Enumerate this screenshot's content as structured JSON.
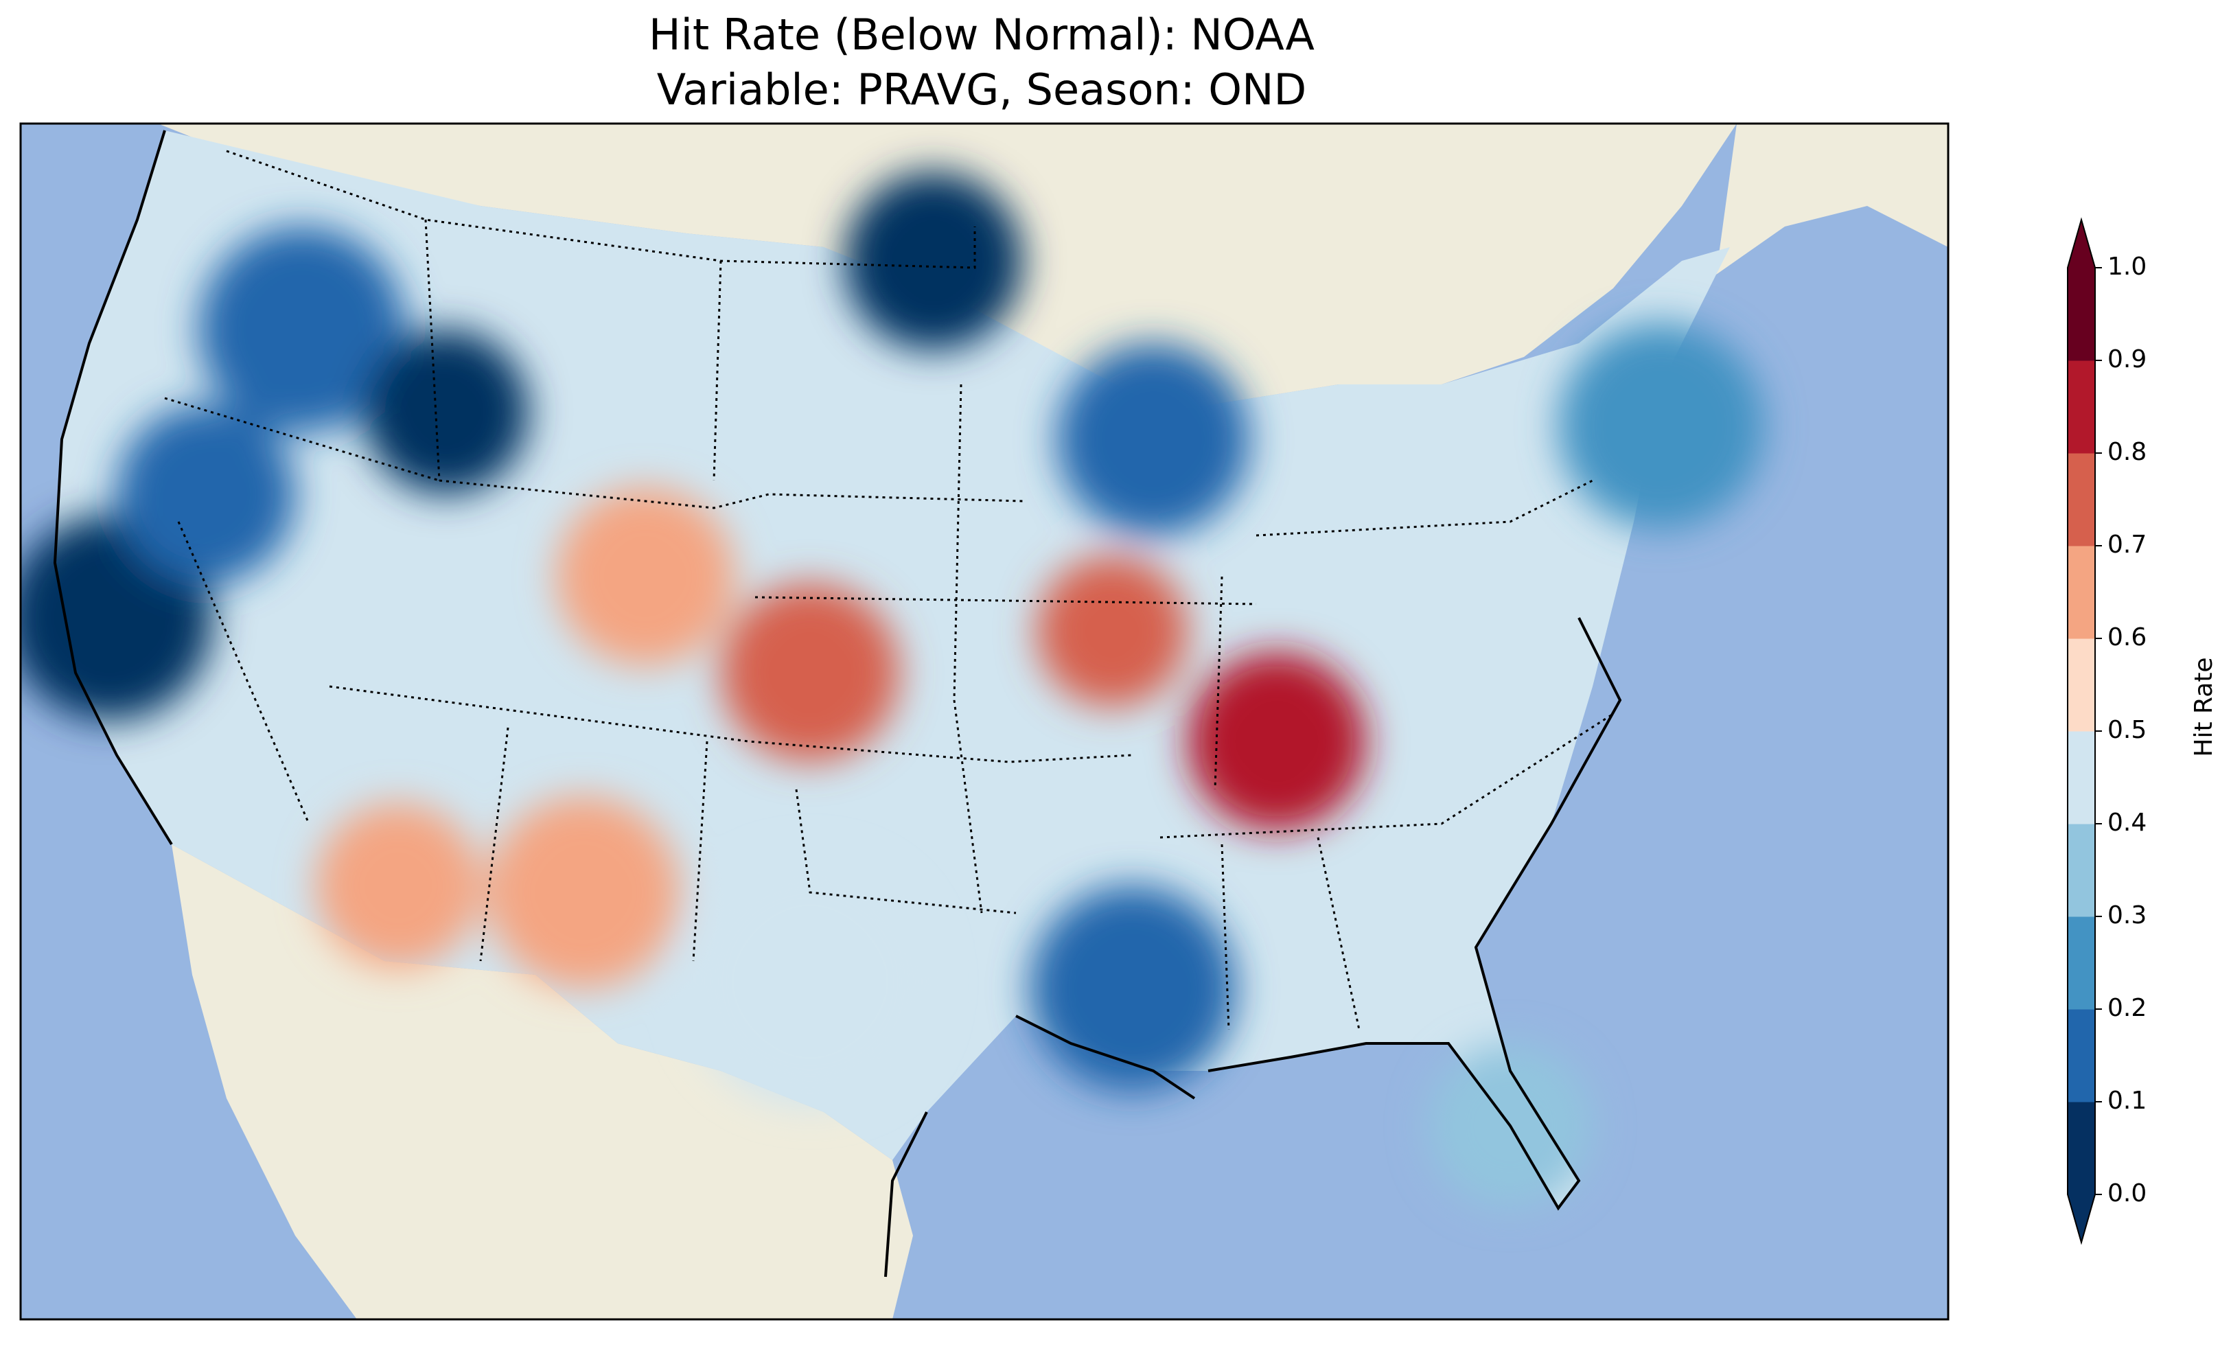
{
  "title": {
    "line1": "Hit Rate (Below Normal): NOAA",
    "line2": "Variable: PRAVG, Season: OND"
  },
  "colors": {
    "ocean": "#97b6e1",
    "land": "#efecdc",
    "border": "#000000"
  },
  "colorbar": {
    "label": "Hit Rate",
    "ticks": [
      "0.0",
      "0.1",
      "0.2",
      "0.3",
      "0.4",
      "0.5",
      "0.6",
      "0.7",
      "0.8",
      "0.9",
      "1.0"
    ],
    "colors": [
      "#053061",
      "#2166ac",
      "#4393c3",
      "#92c5de",
      "#d1e5f0",
      "#fddbc7",
      "#f4a582",
      "#d6604d",
      "#b2182b",
      "#67001f"
    ],
    "under_color": "#053061",
    "over_color": "#67001f",
    "range": [
      0.0,
      1.0
    ]
  },
  "chart_data": {
    "type": "heatmap",
    "title": "Hit Rate (Below Normal): NOAA\nVariable: PRAVG, Season: OND",
    "metric": "Hit Rate",
    "region": "Contiguous United States",
    "value_range": [
      0.0,
      1.0
    ],
    "bins": [
      {
        "range": [
          0.0,
          0.1
        ],
        "color": "#053061"
      },
      {
        "range": [
          0.1,
          0.2
        ],
        "color": "#2166ac"
      },
      {
        "range": [
          0.2,
          0.3
        ],
        "color": "#4393c3"
      },
      {
        "range": [
          0.3,
          0.4
        ],
        "color": "#92c5de"
      },
      {
        "range": [
          0.4,
          0.5
        ],
        "color": "#d1e5f0"
      },
      {
        "range": [
          0.5,
          0.6
        ],
        "color": "#fddbc7"
      },
      {
        "range": [
          0.6,
          0.7
        ],
        "color": "#f4a582"
      },
      {
        "range": [
          0.7,
          0.8
        ],
        "color": "#d6604d"
      },
      {
        "range": [
          0.8,
          0.9
        ],
        "color": "#b2182b"
      },
      {
        "range": [
          0.9,
          1.0
        ],
        "color": "#67001f"
      }
    ],
    "regional_values": [
      {
        "region": "California coast",
        "value": 0.05
      },
      {
        "region": "Northern Nevada",
        "value": 0.15
      },
      {
        "region": "Oregon / Idaho",
        "value": 0.15
      },
      {
        "region": "Western Montana",
        "value": 0.05
      },
      {
        "region": "Northern Minnesota",
        "value": 0.05
      },
      {
        "region": "Wisconsin / Michigan",
        "value": 0.15
      },
      {
        "region": "Louisiana / Mississippi",
        "value": 0.1
      },
      {
        "region": "Colorado",
        "value": 0.65
      },
      {
        "region": "Kansas",
        "value": 0.7
      },
      {
        "region": "Missouri",
        "value": 0.7
      },
      {
        "region": "Kentucky / Tennessee",
        "value": 0.85
      },
      {
        "region": "New Mexico",
        "value": 0.65
      },
      {
        "region": "Arizona",
        "value": 0.6
      },
      {
        "region": "Texas central",
        "value": 0.45
      },
      {
        "region": "Florida",
        "value": 0.35
      },
      {
        "region": "Northeast",
        "value": 0.25
      }
    ]
  }
}
